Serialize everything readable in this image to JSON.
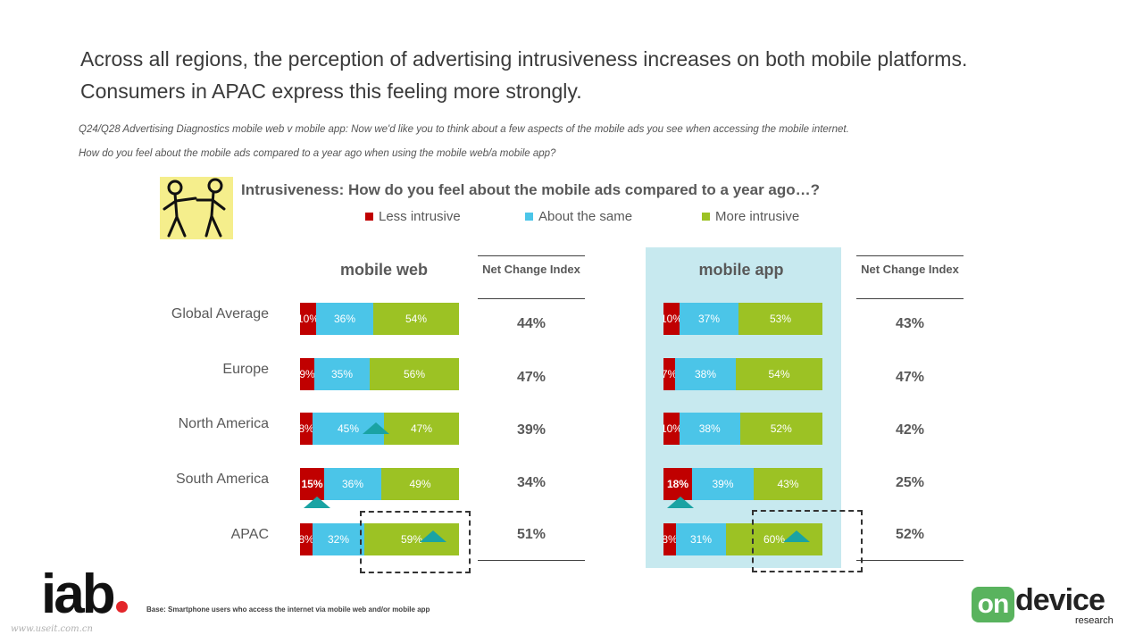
{
  "headline": "Across all regions, the perception of advertising intrusiveness increases on both mobile platforms. Consumers in APAC express this feeling more strongly.",
  "question_line1": "Q24/Q28 Advertising Diagnostics mobile web v mobile app: Now we'd like you to think about a few aspects of the mobile ads you see when accessing the mobile internet.",
  "question_line2": "How do you feel about the mobile ads compared to a year ago when using the mobile web/a mobile app?",
  "colors": {
    "less": "#c00000",
    "same": "#4bc5e8",
    "more": "#9cc224",
    "triangle": "#1aa3a3",
    "app_bg": "#c7e9ef"
  },
  "icons": {
    "figures": "two-stick-figures-icon",
    "triangle": "up-triangle-icon"
  },
  "chart_data": {
    "type": "bar",
    "title": "Intrusiveness:  How do you feel about the mobile ads compared to a year ago…?",
    "legend": [
      "Less intrusive",
      "About the same",
      "More intrusive"
    ],
    "legend_position": "top",
    "net_change_header": "Net Change Index",
    "categories": [
      "Global Average",
      "Europe",
      "North America",
      "South America",
      "APAC"
    ],
    "panels": [
      {
        "name": "mobile web",
        "series": [
          {
            "name": "Less intrusive",
            "values": [
              10,
              9,
              8,
              15,
              8
            ]
          },
          {
            "name": "About the same",
            "values": [
              36,
              35,
              45,
              36,
              32
            ]
          },
          {
            "name": "More intrusive",
            "values": [
              54,
              56,
              47,
              49,
              59
            ]
          }
        ],
        "labels": [
          [
            "10%",
            "36%",
            "54%"
          ],
          [
            "9%",
            "35%",
            "56%"
          ],
          [
            "8%",
            "45%",
            "47%"
          ],
          [
            "15%",
            "36%",
            "49%"
          ],
          [
            "8%",
            "32%",
            "59%"
          ]
        ],
        "net_change": [
          "44%",
          "47%",
          "39%",
          "34%",
          "51%"
        ],
        "up_markers": [
          {
            "row": 2,
            "segment": 1
          },
          {
            "row": 3,
            "segment": 0,
            "below": true
          },
          {
            "row": 4,
            "segment": 2
          }
        ],
        "highlight_row": 4
      },
      {
        "name": "mobile app",
        "series": [
          {
            "name": "Less intrusive",
            "values": [
              10,
              7,
              10,
              18,
              8
            ]
          },
          {
            "name": "About the same",
            "values": [
              37,
              38,
              38,
              39,
              31
            ]
          },
          {
            "name": "More intrusive",
            "values": [
              53,
              54,
              52,
              43,
              60
            ]
          }
        ],
        "labels": [
          [
            "10%",
            "37%",
            "53%"
          ],
          [
            "7%",
            "38%",
            "54%"
          ],
          [
            "10%",
            "38%",
            "52%"
          ],
          [
            "18%",
            "39%",
            "43%"
          ],
          [
            "8%",
            "31%",
            "60%"
          ]
        ],
        "net_change": [
          "43%",
          "47%",
          "42%",
          "25%",
          "52%"
        ],
        "up_markers": [
          {
            "row": 3,
            "segment": 0,
            "below": true
          },
          {
            "row": 4,
            "segment": 2
          }
        ],
        "highlight_row": 4
      }
    ]
  },
  "footer": {
    "logo": "iab",
    "base": "Base: Smartphone users who access the internet via mobile web and/or mobile app",
    "watermark": "www.useit.com.cn",
    "od_on": "on",
    "od_device": "device",
    "od_research": "research"
  }
}
